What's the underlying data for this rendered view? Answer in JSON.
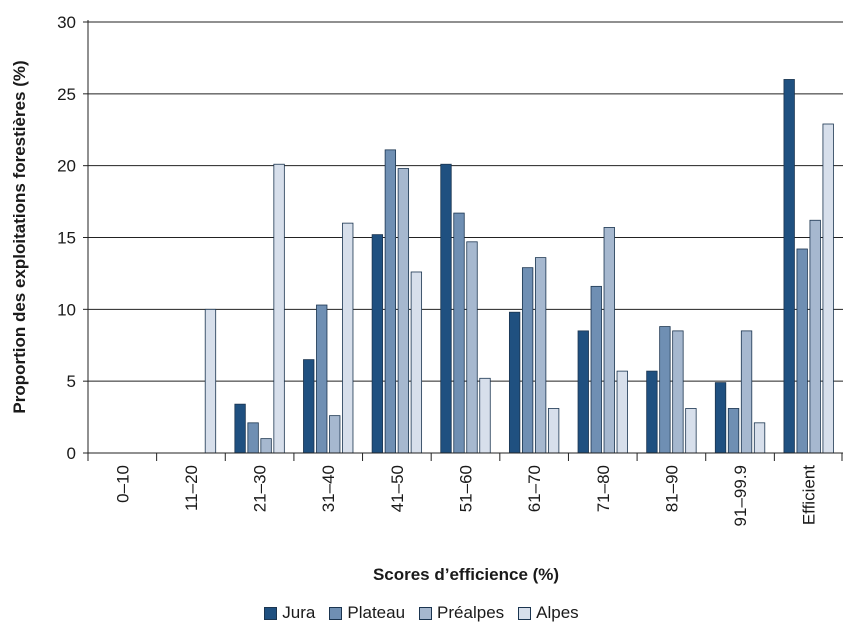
{
  "chart_data": {
    "type": "bar",
    "title": "",
    "xlabel": "Scores d’efficience (%)",
    "ylabel": "Proportion des exploitations forestières (%)",
    "ylim": [
      0,
      30
    ],
    "yticks": [
      "0",
      "5",
      "10",
      "15",
      "20",
      "25",
      "30"
    ],
    "categories": [
      "0–10",
      "11–20",
      "21–30",
      "31–40",
      "41–50",
      "51–60",
      "61–70",
      "71–80",
      "81–90",
      "91–99.9",
      "Efficient"
    ],
    "series": [
      {
        "name": "Jura",
        "color": "#1f5080",
        "values": [
          0,
          0,
          3.4,
          6.5,
          15.2,
          20.1,
          9.8,
          8.5,
          5.7,
          4.9,
          26.0
        ]
      },
      {
        "name": "Plateau",
        "color": "#6f8fb3",
        "values": [
          0,
          0,
          2.1,
          10.3,
          21.1,
          16.7,
          12.9,
          11.6,
          8.8,
          3.1,
          14.2
        ]
      },
      {
        "name": "Préalpes",
        "color": "#a6b8cf",
        "values": [
          0,
          0,
          1.0,
          2.6,
          19.8,
          14.7,
          13.6,
          15.7,
          8.5,
          8.5,
          16.2
        ]
      },
      {
        "name": "Alpes",
        "color": "#d7dfeb",
        "values": [
          0,
          10.0,
          20.1,
          16.0,
          12.6,
          5.2,
          3.1,
          5.7,
          3.1,
          2.1,
          22.9
        ]
      }
    ],
    "grid": true,
    "legend_position": "bottom"
  }
}
